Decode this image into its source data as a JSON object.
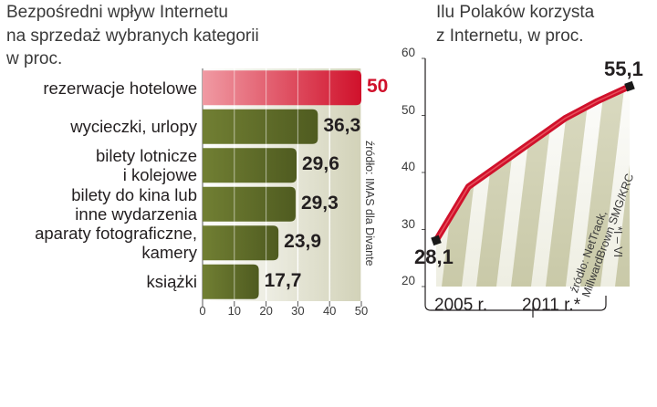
{
  "left_chart": {
    "subtitle": [
      "Bezpośredni wpływ Internetu",
      "na sprzedaż wybranych kategorii",
      "w proc."
    ],
    "source": "źródło: IMAS dla Divante",
    "chart_data": {
      "type": "bar",
      "orientation": "horizontal",
      "categories": [
        [
          "rezerwacje hotelowe"
        ],
        [
          "wycieczki, urlopy"
        ],
        [
          "bilety lotnicze",
          "i kolejowe"
        ],
        [
          "bilety do kina lub",
          "inne wydarzenia"
        ],
        [
          "aparaty fotograficzne,",
          "kamery"
        ],
        [
          "książki"
        ]
      ],
      "values": [
        50,
        36.3,
        29.6,
        29.3,
        23.9,
        17.7
      ],
      "value_labels": [
        "50",
        "36,3",
        "29,6",
        "29,3",
        "23,9",
        "17,7"
      ],
      "xlim": [
        0,
        50
      ],
      "xticks": [
        "0",
        "10",
        "20",
        "30",
        "40",
        "50"
      ],
      "highlight_color": "#d0112b",
      "bar_color": "#5d6a27"
    }
  },
  "right_chart": {
    "subtitle": [
      "Ilu Polaków korzysta",
      "z Internetu, w proc."
    ],
    "source": [
      "źródło: NetTrack,",
      "MillwardBrown SMG/KRC"
    ],
    "footnote": "*I – VI",
    "chart_data": {
      "type": "line",
      "x": [
        2005,
        2006,
        2007,
        2008,
        2009,
        2010,
        2011
      ],
      "y": [
        28.1,
        37.5,
        41.5,
        45.5,
        49.5,
        52.5,
        55.1
      ],
      "point_labels": [
        {
          "index": 0,
          "text": "28,1"
        },
        {
          "index": 6,
          "text": "55,1"
        }
      ],
      "ylim": [
        20,
        60
      ],
      "yticks": [
        "20",
        "30",
        "40",
        "50",
        "60"
      ],
      "xtick_labels": [
        "2005 r.",
        "2011 r.*"
      ],
      "line_color": "#d0112b"
    }
  }
}
